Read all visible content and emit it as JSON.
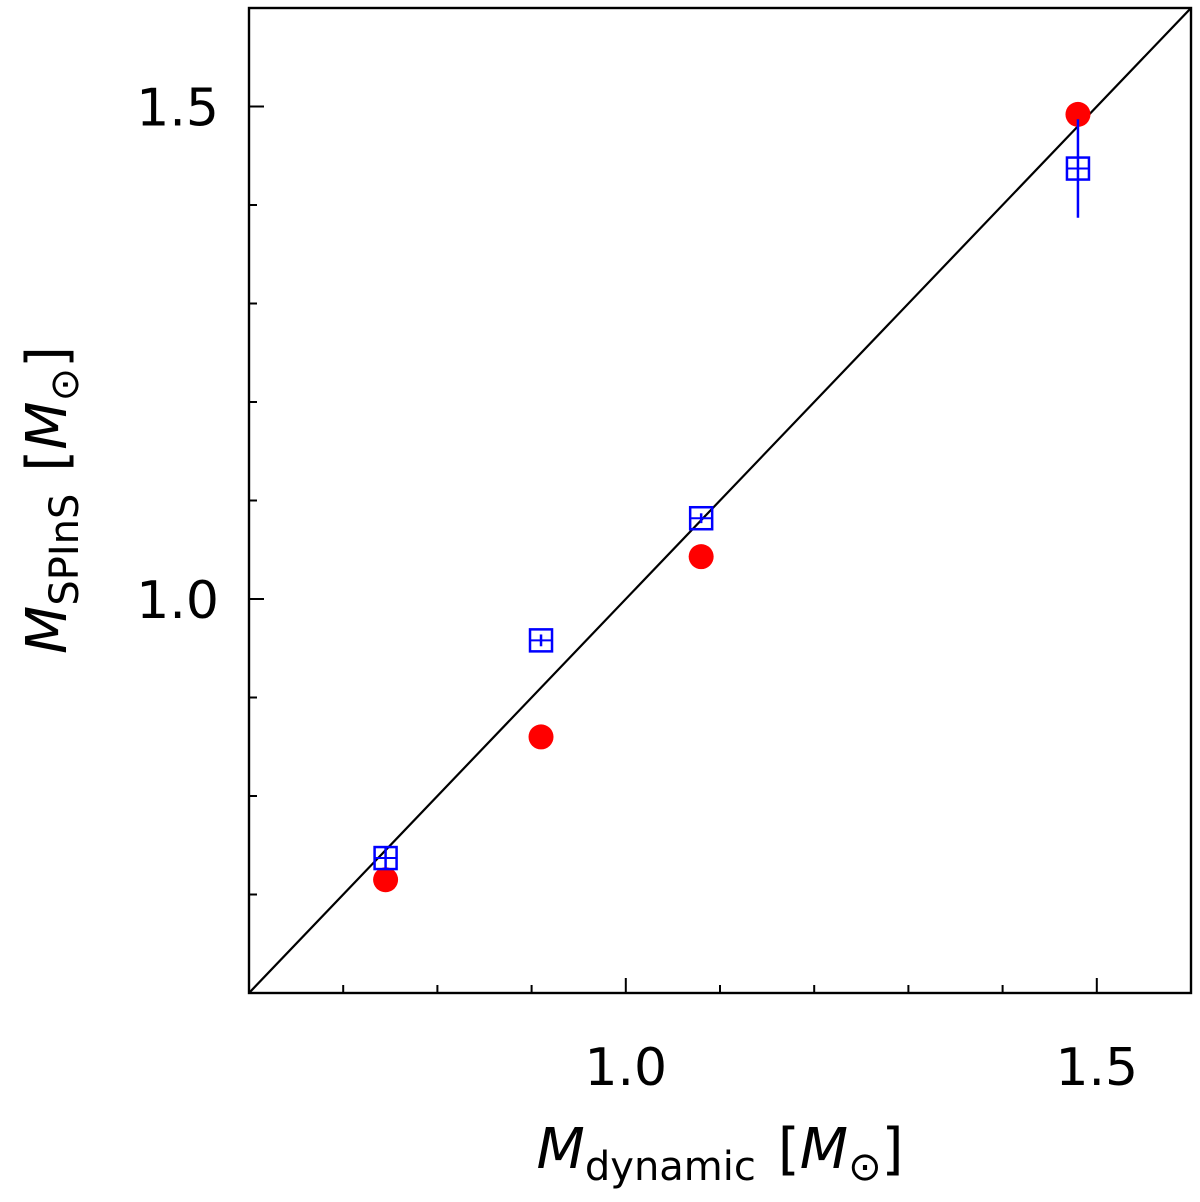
{
  "chart_data": {
    "type": "scatter",
    "title": "",
    "xlabel": {
      "symbol": "M",
      "subscript": "dynamic",
      "unit_open": "[",
      "unit_symbol": "M",
      "unit_subscript": "⊙",
      "unit_close": "]"
    },
    "ylabel": {
      "symbol": "M",
      "subscript": "SPInS",
      "unit_open": "[",
      "unit_symbol": "M",
      "unit_subscript": "⊙",
      "unit_close": "]"
    },
    "xlim": [
      0.6,
      1.6
    ],
    "ylim": [
      0.6,
      1.6
    ],
    "x_major_ticks": [
      1.0,
      1.5
    ],
    "x_major_tick_labels": [
      "1.0",
      "1.5"
    ],
    "x_minor_ticks": [
      0.7,
      0.8,
      0.9,
      1.1,
      1.2,
      1.3,
      1.4
    ],
    "y_major_ticks": [
      1.0,
      1.5
    ],
    "y_major_tick_labels": [
      "1.0",
      "1.5"
    ],
    "y_minor_ticks": [
      0.7,
      0.8,
      0.9,
      1.1,
      1.2,
      1.3,
      1.4
    ],
    "grid": false,
    "reference_line": {
      "name": "one-to-one",
      "from": [
        0.6,
        0.6
      ],
      "to": [
        1.6,
        1.6
      ],
      "color": "#000000"
    },
    "series": [
      {
        "name": "red-circles",
        "marker": "filled-circle",
        "color": "#ff0000",
        "x": [
          0.745,
          0.91,
          1.08,
          1.48
        ],
        "y": [
          0.715,
          0.86,
          1.043,
          1.492
        ]
      },
      {
        "name": "blue-squares",
        "marker": "open-square",
        "color": "#0000ff",
        "x": [
          0.745,
          0.91,
          1.08,
          1.48
        ],
        "y": [
          0.737,
          0.958,
          1.082,
          1.437
        ],
        "yerr": [
          0.012,
          0.006,
          0.005,
          0.05
        ]
      }
    ]
  }
}
